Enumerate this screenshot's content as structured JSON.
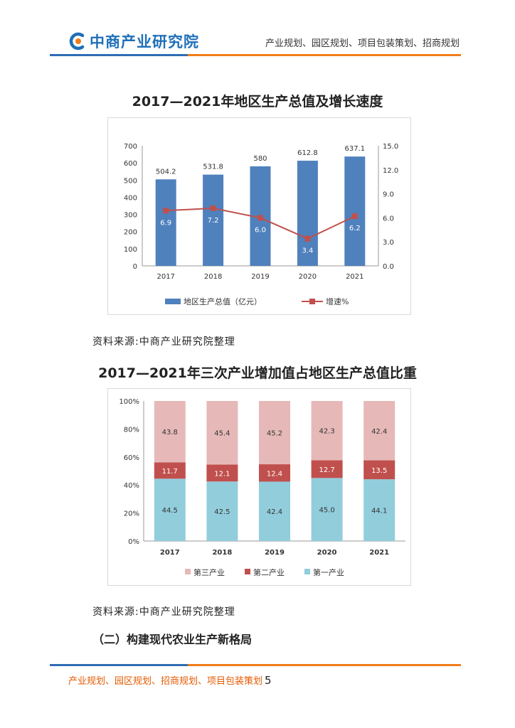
{
  "header": {
    "logo_text": "中商产业研究院",
    "tagline": "产业规划、园区规划、项目包装策划、招商规划"
  },
  "colors": {
    "brand_blue": "#2f6db5",
    "brand_orange": "#f07d1a",
    "bar_blue": "#4f81bd",
    "line_red": "#c0504d",
    "primary_industry": "#92cddc",
    "secondary_industry": "#c0504d",
    "tertiary_industry": "#e6b9b8"
  },
  "chart_data": [
    {
      "type": "bar",
      "title": "2017—2021年地区生产总值及增长速度",
      "categories": [
        "2017",
        "2018",
        "2019",
        "2020",
        "2021"
      ],
      "series": [
        {
          "name": "地区生产总值（亿元）",
          "axis": "left",
          "values": [
            504.2,
            531.8,
            580,
            612.8,
            637.1
          ],
          "labels": [
            "504.2",
            "531.8",
            "580",
            "612.8",
            "637.1"
          ]
        },
        {
          "name": "增速%",
          "axis": "right",
          "render": "line",
          "values": [
            6.9,
            7.2,
            6.0,
            3.4,
            6.2
          ],
          "labels": [
            "6.9",
            "7.2",
            "6.0",
            "3.4",
            "6.2"
          ]
        }
      ],
      "ylim": [
        0,
        700
      ],
      "yticks": [
        "0",
        "100",
        "200",
        "300",
        "400",
        "500",
        "600",
        "700"
      ],
      "y2lim": [
        0,
        15
      ],
      "y2ticks": [
        "0.0",
        "3.0",
        "6.0",
        "9.0",
        "12.0",
        "15.0"
      ],
      "grid": false,
      "legend": "bottom"
    },
    {
      "type": "bar",
      "stacked": true,
      "title": "2017—2021年三次产业增加值占地区生产总值比重",
      "categories": [
        "2017",
        "2018",
        "2019",
        "2020",
        "2021"
      ],
      "series": [
        {
          "name": "第一产业",
          "values": [
            44.5,
            42.5,
            42.4,
            45.0,
            44.1
          ],
          "labels": [
            "44.5",
            "42.5",
            "42.4",
            "45.0",
            "44.1"
          ]
        },
        {
          "name": "第二产业",
          "values": [
            11.7,
            12.1,
            12.4,
            12.7,
            13.5
          ],
          "labels": [
            "11.7",
            "12.1",
            "12.4",
            "12.7",
            "13.5"
          ]
        },
        {
          "name": "第三产业",
          "values": [
            43.8,
            45.4,
            45.2,
            42.3,
            42.4
          ],
          "labels": [
            "43.8",
            "45.4",
            "45.2",
            "42.3",
            "42.4"
          ]
        }
      ],
      "ylim": [
        0,
        100
      ],
      "yticks": [
        "0%",
        "20%",
        "40%",
        "60%",
        "80%",
        "100%"
      ],
      "grid": false,
      "legend": "bottom",
      "legend_order": [
        "第三产业",
        "第二产业",
        "第一产业"
      ]
    }
  ],
  "source_note": "资料来源:中商产业研究院整理",
  "section_heading": "（二）构建现代农业生产新格局",
  "footer": {
    "text": "产业规划、园区规划、招商规划、项目包装策划",
    "page_number": "5"
  }
}
